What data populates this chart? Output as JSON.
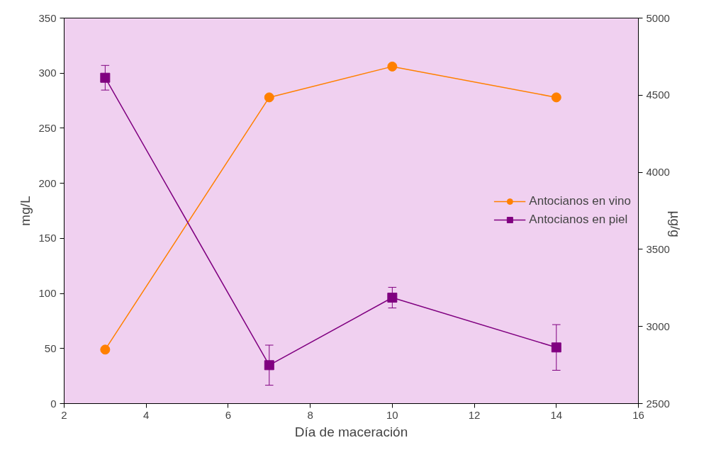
{
  "chart_data": {
    "type": "line",
    "xlabel": "Día de maceración",
    "ylabel": "mg/L",
    "y2label": "µg/g",
    "x": [
      3,
      7,
      10,
      14
    ],
    "xlim": [
      2,
      16
    ],
    "xticks": [
      2,
      4,
      6,
      8,
      10,
      12,
      14,
      16
    ],
    "ylim": [
      0,
      350
    ],
    "yticks": [
      0,
      50,
      100,
      150,
      200,
      250,
      300,
      350
    ],
    "y2lim": [
      2500,
      5000
    ],
    "y2ticks": [
      2500,
      3000,
      3500,
      4000,
      4500,
      5000
    ],
    "series": [
      {
        "name": "Antocianos en vino",
        "color": "#ff8000",
        "marker": "circle",
        "values": [
          49,
          278,
          306,
          278
        ]
      },
      {
        "name": "Antocianos en piel",
        "color": "#800080",
        "marker": "square",
        "axis": "y2",
        "values": [
          4613,
          2749,
          3187,
          2864
        ],
        "errors": [
          80,
          130,
          67,
          148
        ]
      }
    ],
    "grid": false,
    "legend": "right"
  }
}
